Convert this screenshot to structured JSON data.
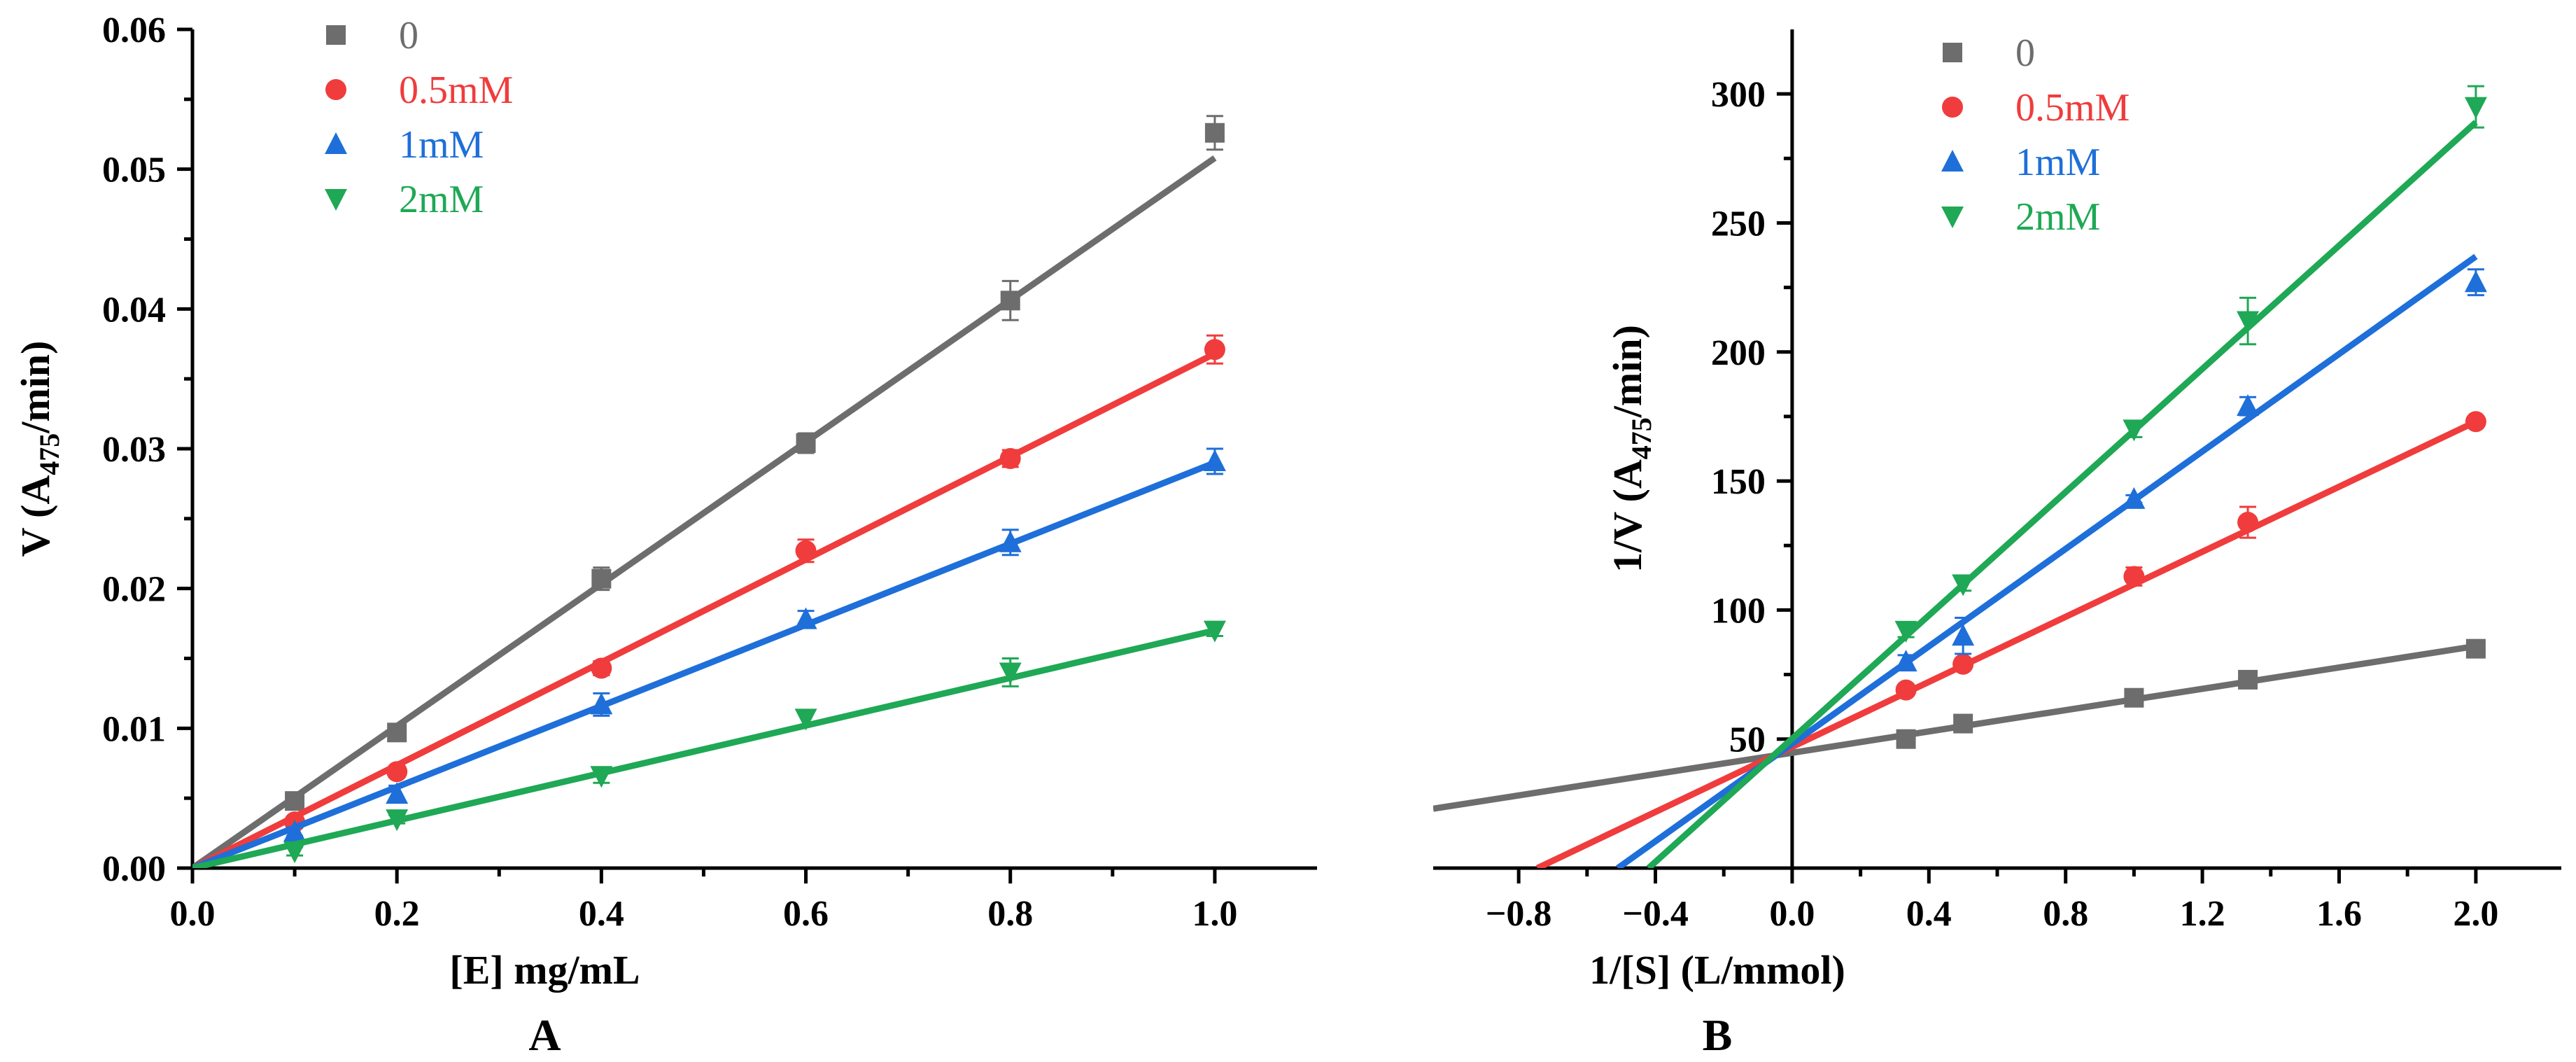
{
  "chart_data": [
    {
      "type": "scatter",
      "panel_label": "A",
      "xlabel": "[E] mg/mL",
      "ylabel": {
        "base": "V (A",
        "sub": "475",
        "tail": "/min)"
      },
      "xlim": [
        0,
        1.1
      ],
      "ylim": [
        0,
        0.06
      ],
      "xticks": [
        0.0,
        0.2,
        0.4,
        0.6,
        0.8,
        1.0
      ],
      "xtick_labels": [
        "0.0",
        "0.2",
        "0.4",
        "0.6",
        "0.8",
        "1.0"
      ],
      "yticks": [
        0,
        0.01,
        0.02,
        0.03,
        0.04,
        0.05,
        0.06
      ],
      "ytick_labels": [
        "0.00",
        "0.01",
        "0.02",
        "0.03",
        "0.04",
        "0.05",
        "0.06"
      ],
      "grid": false,
      "legend_position": "top-left",
      "fit_lines": "linear",
      "series": [
        {
          "name": "0",
          "color": "#6d6d6d",
          "marker": "square",
          "x": [
            0.1,
            0.2,
            0.4,
            0.6,
            0.8,
            1.0
          ],
          "y": [
            0.0048,
            0.0097,
            0.0207,
            0.0304,
            0.0406,
            0.0526
          ],
          "err": [
            0.0004,
            0.0005,
            0.0008,
            0.0007,
            0.0014,
            0.0012
          ],
          "fit": {
            "x": [
              0,
              1.0
            ],
            "y": [
              0,
              0.0508
            ]
          }
        },
        {
          "name": "0.5mM",
          "color": "#f03c3c",
          "marker": "circle",
          "x": [
            0.1,
            0.2,
            0.4,
            0.6,
            0.8,
            1.0
          ],
          "y": [
            0.0033,
            0.0069,
            0.0143,
            0.0227,
            0.0293,
            0.0371
          ],
          "err": [
            0.0003,
            0.0004,
            0.0005,
            0.0008,
            0.0006,
            0.001
          ],
          "fit": {
            "x": [
              0,
              1.0
            ],
            "y": [
              0,
              0.0368
            ]
          }
        },
        {
          "name": "1mM",
          "color": "#1e6fd9",
          "marker": "triangle-up",
          "x": [
            0.1,
            0.2,
            0.4,
            0.6,
            0.8,
            1.0
          ],
          "y": [
            0.0026,
            0.0053,
            0.0117,
            0.0178,
            0.0233,
            0.0291
          ],
          "err": [
            0.0003,
            0.0006,
            0.0008,
            0.0006,
            0.0009,
            0.0009
          ],
          "fit": {
            "x": [
              0,
              1.0
            ],
            "y": [
              0,
              0.029
            ]
          }
        },
        {
          "name": "2mM",
          "color": "#1fa855",
          "marker": "triangle-down",
          "x": [
            0.1,
            0.2,
            0.4,
            0.6,
            0.8,
            1.0
          ],
          "y": [
            0.0012,
            0.0035,
            0.0066,
            0.0107,
            0.014,
            0.017
          ],
          "err": [
            0.0003,
            0.0003,
            0.0005,
            0.0005,
            0.001,
            0.0004
          ],
          "fit": {
            "x": [
              0,
              1.0
            ],
            "y": [
              0,
              0.017
            ]
          }
        }
      ]
    },
    {
      "type": "scatter",
      "panel_label": "B",
      "xlabel": "1/[S] (L/mmol)",
      "ylabel": {
        "base": "1/V (A",
        "sub": "475",
        "tail": "/min)"
      },
      "xlim": [
        -1.05,
        2.25
      ],
      "ylim": [
        0,
        325
      ],
      "xticks": [
        -0.8,
        -0.4,
        0.0,
        0.4,
        0.8,
        1.2,
        1.6,
        2.0
      ],
      "xtick_labels": [
        "−0.8",
        "−0.4",
        "0.0",
        "0.4",
        "0.8",
        "1.2",
        "1.6",
        "2.0"
      ],
      "yticks": [
        50,
        100,
        150,
        200,
        250,
        300
      ],
      "ytick_labels": [
        "50",
        "100",
        "150",
        "200",
        "250",
        "300"
      ],
      "grid": false,
      "legend_position": "top-left",
      "fit_lines": "linear",
      "series": [
        {
          "name": "0",
          "color": "#6d6d6d",
          "marker": "square",
          "x": [
            0.333,
            0.5,
            1.0,
            1.333,
            2.0
          ],
          "y": [
            50,
            56,
            66,
            73,
            85
          ],
          "err": [
            1.5,
            1.5,
            1.5,
            1.5,
            1.5
          ],
          "fit": {
            "x": [
              -1.05,
              2.0
            ],
            "y": [
              23,
              86
            ]
          }
        },
        {
          "name": "0.5mM",
          "color": "#f03c3c",
          "marker": "circle",
          "x": [
            0.333,
            0.5,
            1.0,
            1.333,
            2.0
          ],
          "y": [
            69,
            79,
            113,
            134,
            173
          ],
          "err": [
            1.5,
            1.5,
            3.5,
            6,
            1.5
          ],
          "fit": {
            "x": [
              -0.745,
              2.0
            ],
            "y": [
              0,
              173
            ]
          }
        },
        {
          "name": "1mM",
          "color": "#1e6fd9",
          "marker": "triangle-up",
          "x": [
            0.333,
            0.5,
            1.0,
            1.333,
            2.0
          ],
          "y": [
            80,
            90,
            143,
            179,
            227
          ],
          "err": [
            2.5,
            7,
            1.5,
            3.5,
            5
          ],
          "fit": {
            "x": [
              -0.51,
              2.0
            ],
            "y": [
              0,
              237
            ]
          }
        },
        {
          "name": "2mM",
          "color": "#1fa855",
          "marker": "triangle-down",
          "x": [
            0.333,
            0.5,
            1.0,
            1.333,
            2.0
          ],
          "y": [
            92,
            110,
            170,
            212,
            295
          ],
          "err": [
            2.5,
            2.5,
            3,
            9,
            8
          ],
          "fit": {
            "x": [
              -0.42,
              2.0
            ],
            "y": [
              0,
              289
            ]
          }
        }
      ]
    }
  ]
}
